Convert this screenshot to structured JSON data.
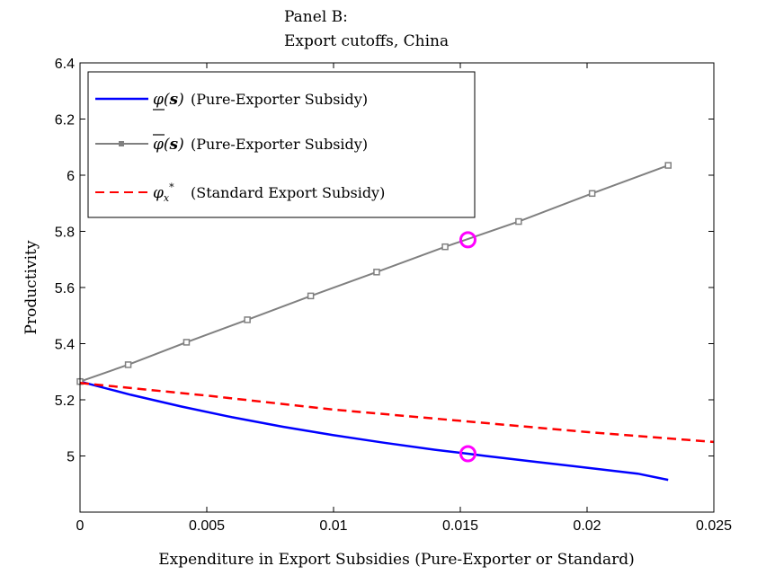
{
  "chart_data": {
    "type": "line",
    "title_line1": "Panel B:",
    "title_line2": "Export cutoffs, China",
    "xlabel": "Expenditure in Export Subsidies (Pure-Exporter or Standard)",
    "ylabel": "Productivity",
    "xlim": [
      0,
      0.025
    ],
    "ylim": [
      4.8,
      6.4
    ],
    "xticks": [
      "0",
      "0.005",
      "0.01",
      "0.015",
      "0.02",
      "0.025"
    ],
    "xtick_values": [
      0,
      0.005,
      0.01,
      0.015,
      0.02,
      0.025
    ],
    "yticks": [
      "5",
      "5.2",
      "5.4",
      "5.6",
      "5.8",
      "6",
      "6.2",
      "6.4"
    ],
    "ytick_values": [
      5.0,
      5.2,
      5.4,
      5.6,
      5.8,
      6.0,
      6.2,
      6.4
    ],
    "legend_position": "top-left",
    "series": [
      {
        "legend_symbol": "φ(s)",
        "legend_label": "(Pure-Exporter Subsidy)",
        "color": "#0000ff",
        "style": "solid",
        "x": [
          0,
          0.002,
          0.004,
          0.006,
          0.008,
          0.01,
          0.012,
          0.014,
          0.0153,
          0.016,
          0.018,
          0.02,
          0.022,
          0.0232
        ],
        "y": [
          5.265,
          5.218,
          5.176,
          5.138,
          5.104,
          5.074,
          5.047,
          5.022,
          5.008,
          5.0,
          4.979,
          4.958,
          4.937,
          4.915
        ]
      },
      {
        "legend_symbol": "φ(s)",
        "legend_label": "(Pure-Exporter Subsidy)",
        "color": "#808080",
        "style": "solid-square-markers",
        "x": [
          0,
          0.0019,
          0.0042,
          0.0066,
          0.0091,
          0.0117,
          0.0144,
          0.0173,
          0.0202,
          0.0232
        ],
        "y": [
          5.265,
          5.325,
          5.405,
          5.485,
          5.57,
          5.655,
          5.745,
          5.835,
          5.935,
          6.035
        ]
      },
      {
        "legend_symbol": "φx*",
        "legend_label": "(Standard Export Subsidy)",
        "color": "#ff0000",
        "style": "dashed",
        "x": [
          0,
          0.005,
          0.01,
          0.015,
          0.02,
          0.025
        ],
        "y": [
          5.26,
          5.215,
          5.165,
          5.125,
          5.085,
          5.05
        ]
      }
    ],
    "highlight_points": [
      {
        "x": 0.0153,
        "y": 5.77,
        "color": "#ff00ff"
      },
      {
        "x": 0.0153,
        "y": 5.008,
        "color": "#ff00ff"
      }
    ]
  }
}
